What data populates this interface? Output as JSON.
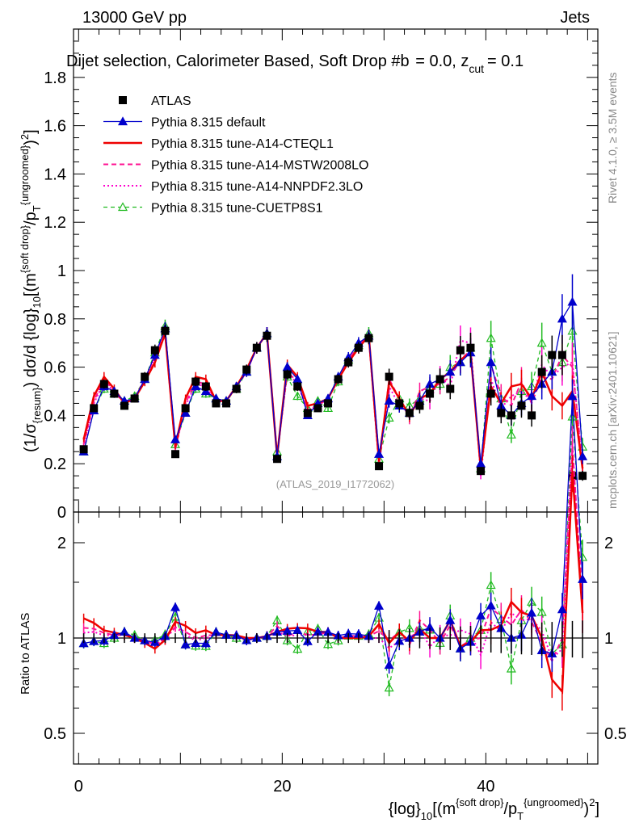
{
  "header": {
    "energy_label": "13000 GeV pp",
    "category_label": "Jets",
    "plot_title": "Dijet selection, Calorimeter Based, Soft Drop #b",
    "plot_title_params": "= 0.0, z",
    "plot_title_sub": "cut",
    "plot_title_end": "= 0.1",
    "rivet_label": "Rivet 4.1.0, ≥ 3.5M events",
    "mcplots_label": "mcplots.cern.ch [arXiv:2401.10621]",
    "analysis_id": "(ATLAS_2019_I1772062)"
  },
  "axes": {
    "main_ylabel_prefix": "(1/σ",
    "main_ylabel_sub": "{resum}",
    "main_ylabel_mid": ") dσ/d {log}",
    "main_ylabel_sub2": "10",
    "main_ylabel_tail": "[(m",
    "main_ylabel_sup": "{soft drop}",
    "main_ylabel_tail2": "/p",
    "main_ylabel_sub3": "T",
    "main_ylabel_sup2": "{ungroomed}",
    "main_ylabel_end": ")",
    "main_ylabel_sup3": "2",
    "main_ylabel_close": "]",
    "ratio_ylabel": "Ratio to ATLAS",
    "xlabel_prefix": "{log}",
    "xlabel_sub": "10",
    "xlabel_mid": "[(m",
    "xlabel_sup": "{soft drop}",
    "xlabel_mid2": "/p",
    "xlabel_sub2": "T",
    "xlabel_sup2": "{ungroomed}",
    "xlabel_end": ")",
    "xlabel_sup3": "2",
    "xlabel_close": "]",
    "x_ticks": [
      "0",
      "20",
      "40"
    ],
    "main_y_ticks": [
      "0",
      "0.2",
      "0.4",
      "0.6",
      "0.8",
      "1",
      "1.2",
      "1.4",
      "1.6",
      "1.8"
    ],
    "ratio_y_ticks": [
      "0.5",
      "1",
      "2"
    ]
  },
  "legend": [
    {
      "label": "ATLAS",
      "color": "#000000",
      "style": "marker-square"
    },
    {
      "label": "Pythia 8.315 default",
      "color": "#0000cc",
      "style": "line-triangle"
    },
    {
      "label": "Pythia 8.315 tune-A14-CTEQL1",
      "color": "#ee0000",
      "style": "line-solid"
    },
    {
      "label": "Pythia 8.315 tune-A14-MSTW2008LO",
      "color": "#ff1493",
      "style": "line-dashed"
    },
    {
      "label": "Pythia 8.315 tune-A14-NNPDF2.3LO",
      "color": "#ff00cc",
      "style": "line-dotted"
    },
    {
      "label": "Pythia 8.315 tune-CUETP8S1",
      "color": "#22bb22",
      "style": "line-dashed-open-triangle"
    }
  ],
  "chart_data": {
    "type": "line",
    "title": "Dijet selection, Calorimeter Based, Soft Drop #b = 0.0, z_cut = 0.1",
    "xlabel": "{log}_10[(m^{soft drop}/p_T^{ungroomed})^2]",
    "ylabel": "(1/σ_{resum}) dσ/d {log}_10[(m^{soft drop}/p_T^{ungroomed})^2]",
    "xlim": [
      -0.5,
      51
    ],
    "ylim": [
      0,
      2.0
    ],
    "ratio_ylim": [
      0.4,
      2.5
    ],
    "x": [
      0.5,
      1.5,
      2.5,
      3.5,
      4.5,
      5.5,
      6.5,
      7.5,
      8.5,
      9.5,
      10.5,
      11.5,
      12.5,
      13.5,
      14.5,
      15.5,
      16.5,
      17.5,
      18.5,
      19.5,
      20.5,
      21.5,
      22.5,
      23.5,
      24.5,
      25.5,
      26.5,
      27.5,
      28.5,
      29.5,
      30.5,
      31.5,
      32.5,
      33.5,
      34.5,
      35.5,
      36.5,
      37.5,
      38.5,
      39.5,
      40.5,
      41.5,
      42.5,
      43.5,
      44.5,
      45.5,
      46.5,
      47.5,
      48.5,
      49.5
    ],
    "series": [
      {
        "name": "ATLAS",
        "color": "#000000",
        "values": [
          0.26,
          0.43,
          0.53,
          0.49,
          0.44,
          0.47,
          0.56,
          0.67,
          0.75,
          0.24,
          0.43,
          0.54,
          0.52,
          0.45,
          0.45,
          0.51,
          0.59,
          0.68,
          0.73,
          0.22,
          0.57,
          0.52,
          0.41,
          0.43,
          0.45,
          0.55,
          0.62,
          0.68,
          0.72,
          0.19,
          0.56,
          0.45,
          0.41,
          0.44,
          0.49,
          0.55,
          0.51,
          0.67,
          0.68,
          0.17,
          0.49,
          0.41,
          0.4,
          0.44,
          0.4,
          0.58,
          0.65,
          0.65,
          0.15,
          0.15
        ]
      },
      {
        "name": "Pythia 8.315 default",
        "color": "#0000cc",
        "values": [
          0.25,
          0.42,
          0.52,
          0.5,
          0.46,
          0.47,
          0.55,
          0.65,
          0.76,
          0.3,
          0.41,
          0.52,
          0.5,
          0.47,
          0.46,
          0.52,
          0.58,
          0.68,
          0.74,
          0.23,
          0.6,
          0.55,
          0.4,
          0.45,
          0.47,
          0.56,
          0.64,
          0.7,
          0.73,
          0.24,
          0.46,
          0.44,
          0.41,
          0.46,
          0.53,
          0.55,
          0.58,
          0.62,
          0.66,
          0.2,
          0.62,
          0.44,
          0.4,
          0.45,
          0.48,
          0.53,
          0.58,
          0.8,
          0.87,
          0.23
        ]
      },
      {
        "name": "Pythia 8.315 tune-A14-CTEQL1",
        "color": "#ee0000",
        "values": [
          0.3,
          0.48,
          0.56,
          0.51,
          0.45,
          0.47,
          0.54,
          0.62,
          0.74,
          0.27,
          0.47,
          0.56,
          0.55,
          0.46,
          0.46,
          0.52,
          0.59,
          0.68,
          0.74,
          0.23,
          0.61,
          0.56,
          0.44,
          0.45,
          0.47,
          0.55,
          0.62,
          0.68,
          0.73,
          0.21,
          0.54,
          0.47,
          0.4,
          0.47,
          0.49,
          0.55,
          0.58,
          0.63,
          0.66,
          0.18,
          0.52,
          0.45,
          0.52,
          0.53,
          0.47,
          0.58,
          0.48,
          0.44,
          0.5,
          0.18
        ]
      },
      {
        "name": "Pythia 8.315 tune-A14-MSTW2008LO",
        "color": "#ff1493",
        "values": [
          0.28,
          0.46,
          0.55,
          0.5,
          0.45,
          0.47,
          0.55,
          0.64,
          0.75,
          0.26,
          0.45,
          0.54,
          0.53,
          0.46,
          0.46,
          0.52,
          0.58,
          0.68,
          0.74,
          0.24,
          0.58,
          0.54,
          0.42,
          0.44,
          0.47,
          0.55,
          0.63,
          0.69,
          0.73,
          0.2,
          0.55,
          0.47,
          0.39,
          0.5,
          0.52,
          0.53,
          0.56,
          0.63,
          0.67,
          0.17,
          0.61,
          0.48,
          0.44,
          0.54,
          0.45,
          0.56,
          0.55,
          0.65,
          0.6,
          0.2
        ]
      },
      {
        "name": "Pythia 8.315 tune-A14-NNPDF2.3LO",
        "color": "#ff00cc",
        "values": [
          0.27,
          0.45,
          0.54,
          0.5,
          0.45,
          0.47,
          0.55,
          0.64,
          0.74,
          0.26,
          0.44,
          0.53,
          0.52,
          0.46,
          0.46,
          0.52,
          0.58,
          0.68,
          0.74,
          0.23,
          0.58,
          0.53,
          0.42,
          0.44,
          0.47,
          0.55,
          0.62,
          0.69,
          0.72,
          0.19,
          0.52,
          0.44,
          0.41,
          0.47,
          0.46,
          0.56,
          0.52,
          0.71,
          0.7,
          0.15,
          0.55,
          0.43,
          0.48,
          0.5,
          0.46,
          0.61,
          0.56,
          0.6,
          0.62,
          0.18
        ]
      },
      {
        "name": "Pythia 8.315 tune-CUETP8S1",
        "color": "#22bb22",
        "values": [
          0.25,
          0.42,
          0.51,
          0.49,
          0.46,
          0.48,
          0.55,
          0.66,
          0.77,
          0.28,
          0.41,
          0.51,
          0.49,
          0.47,
          0.46,
          0.51,
          0.58,
          0.68,
          0.74,
          0.25,
          0.56,
          0.48,
          0.43,
          0.46,
          0.43,
          0.54,
          0.63,
          0.69,
          0.74,
          0.22,
          0.39,
          0.47,
          0.44,
          0.47,
          0.52,
          0.53,
          0.6,
          0.62,
          0.68,
          0.18,
          0.72,
          0.47,
          0.32,
          0.5,
          0.52,
          0.7,
          0.58,
          0.62,
          0.75,
          0.27
        ]
      }
    ]
  }
}
